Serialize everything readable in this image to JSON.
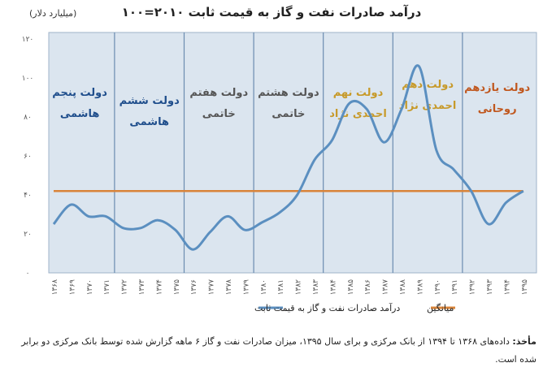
{
  "title": "درآمد صادرات نفت و گاز به قیمت ثابت ۲۰۱۰=۱۰۰",
  "y_unit": "(میلیارد دلار)",
  "source": {
    "label": "مأخذ:",
    "text": "داده‌های ۱۳۶۸ تا ۱۳۹۴ از بانک مرکزی و برای سال ۱۳۹۵، میزان صادرات نفت و گاز ۶ ماهه گزارش شده توسط بانک مرکزی دو برابر شده است."
  },
  "colors": {
    "series": "#5b8fc0",
    "average": "#d9843a",
    "plot_bg": "#dbe5ef",
    "divider": "#6b8cb0"
  },
  "chart_data": {
    "type": "line",
    "x": [
      "۱۳۶۸",
      "۱۳۶۹",
      "۱۳۷۰",
      "۱۳۷۱",
      "۱۳۷۲",
      "۱۳۷۳",
      "۱۳۷۴",
      "۱۳۷۵",
      "۱۳۷۶",
      "۱۳۷۷",
      "۱۳۷۸",
      "۱۳۷۹",
      "۱۳۸۰",
      "۱۳۸۱",
      "۱۳۸۲",
      "۱۳۸۳",
      "۱۳۸۴",
      "۱۳۸۵",
      "۱۳۸۶",
      "۱۳۸۷",
      "۱۳۸۸",
      "۱۳۸۹",
      "۱۳۹۰",
      "۱۳۹۱",
      "۱۳۹۲",
      "۱۳۹۳",
      "۱۳۹۴",
      "۱۳۹۵"
    ],
    "y_ticks": [
      "۰",
      "۲۰",
      "۴۰",
      "۶۰",
      "۸۰",
      "۱۰۰",
      "۱۲۰"
    ],
    "ylim": [
      0,
      120
    ],
    "series": [
      {
        "name": "درآمد صادرات نفت و گاز به قیمت ثابت",
        "values": [
          25,
          35,
          29,
          29,
          23,
          23,
          27,
          22,
          12,
          21,
          29,
          22,
          26,
          31,
          40,
          58,
          68,
          87,
          84,
          67,
          84,
          106,
          63,
          53,
          42,
          25,
          36,
          42
        ]
      },
      {
        "name": "میانگین",
        "values": [
          42,
          42,
          42,
          42,
          42,
          42,
          42,
          42,
          42,
          42,
          42,
          42,
          42,
          42,
          42,
          42,
          42,
          42,
          42,
          42,
          42,
          42,
          42,
          42,
          42,
          42,
          42,
          42
        ]
      }
    ],
    "eras": [
      {
        "line1": "دولت پنجم",
        "line2": "هاشمی",
        "color": "#1f4e8c"
      },
      {
        "line1": "دولت ششم",
        "line2": "هاشمی",
        "color": "#1f4e8c"
      },
      {
        "line1": "دولت هفتم",
        "line2": "خاتمی",
        "color": "#555555"
      },
      {
        "line1": "دولت هشتم",
        "line2": "خاتمی",
        "color": "#555555"
      },
      {
        "line1": "دولت نهم",
        "line2": "احمدی نژاد",
        "color": "#c79a2a"
      },
      {
        "line1": "دولت دهم",
        "line2": "احمدی نژاد",
        "color": "#c79a2a"
      },
      {
        "line1": "دولت یازدهم",
        "line2": "روحانی",
        "color": "#c0571e"
      }
    ],
    "grid": false
  }
}
